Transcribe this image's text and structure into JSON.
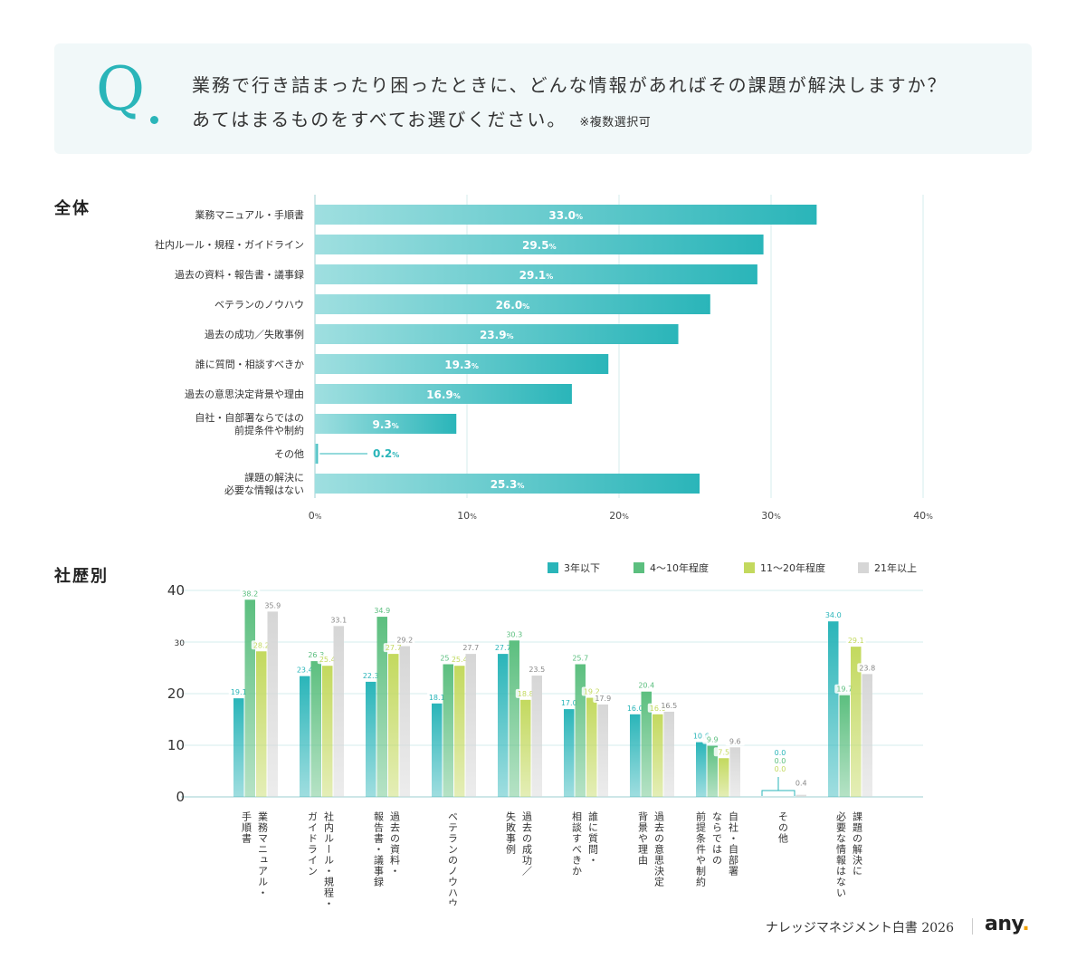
{
  "question": {
    "mark": "Q",
    "line1": "業務で行き詰まったり困ったときに、どんな情報があればその課題が解決しますか？",
    "line2": "あてはまるものをすべてお選びください。",
    "note": "※複数選択可"
  },
  "sections": {
    "overall": "全体",
    "by_tenure": "社歴別"
  },
  "colors": {
    "overall_bar_start": "#9fdfe0",
    "overall_bar_end": "#2ab5b9",
    "series": [
      "#2ab5b9",
      "#5cbf7f",
      "#c3d95e",
      "#d6d6d6"
    ]
  },
  "chart_data": [
    {
      "type": "bar",
      "orientation": "horizontal",
      "title": "全体",
      "categories": [
        "業務マニュアル・手順書",
        "社内ルール・規程・ガイドライン",
        "過去の資料・報告書・議事録",
        "ベテランのノウハウ",
        "過去の成功／失敗事例",
        "誰に質問・相談すべきか",
        "過去の意思決定背景や理由",
        "自社・自部署ならではの\n前提条件や制約",
        "その他",
        "課題の解決に\n必要な情報はない"
      ],
      "values": [
        33.0,
        29.5,
        29.1,
        26.0,
        23.9,
        19.3,
        16.9,
        9.3,
        0.2,
        25.3
      ],
      "value_unit": "%",
      "xlim": [
        0,
        40
      ],
      "xticks": [
        0,
        10,
        20,
        30,
        40
      ],
      "tick_unit": "%",
      "grid": true
    },
    {
      "type": "bar",
      "title": "社歴別",
      "categories": [
        "業務マニュアル・\n手順書",
        "社内ルール・規程・\nガイドライン",
        "過去の資料・\n報告書・議事録",
        "ベテランのノウハウ",
        "過去の成功／\n失敗事例",
        "誰に質問・\n相談すべきか",
        "過去の意思決定\n背景や理由",
        "自社・自部署\nならではの\n前提条件や制約",
        "その他",
        "課題の解決に\n必要な情報はない"
      ],
      "series": [
        {
          "name": "3年以下",
          "values": [
            19.1,
            23.4,
            22.3,
            18.1,
            27.7,
            17.0,
            16.0,
            10.6,
            0.0,
            34.0
          ]
        },
        {
          "name": "4〜10年程度",
          "values": [
            38.2,
            26.3,
            34.9,
            25.7,
            30.3,
            25.7,
            20.4,
            9.9,
            0.0,
            19.7
          ]
        },
        {
          "name": "11〜20年程度",
          "values": [
            28.2,
            25.4,
            27.7,
            25.4,
            18.8,
            19.2,
            16.0,
            7.5,
            0.0,
            29.1
          ]
        },
        {
          "name": "21年以上",
          "values": [
            35.9,
            33.1,
            29.2,
            27.7,
            23.5,
            17.9,
            16.5,
            9.6,
            0.4,
            23.8
          ]
        }
      ],
      "ylim": [
        0,
        40
      ],
      "yticks": [
        0,
        10,
        20,
        30,
        40
      ],
      "legend": "top-right",
      "grid": true
    }
  ],
  "footer": {
    "title": "ナレッジマネジメント白書 2026",
    "logo": "any",
    "logo_dot": "."
  }
}
